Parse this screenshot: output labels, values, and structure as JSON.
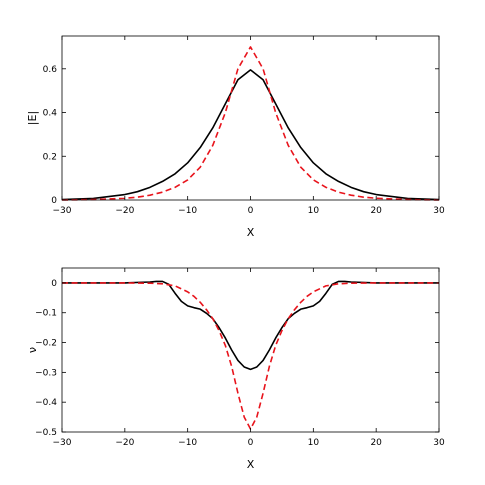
{
  "chart_data": [
    {
      "type": "line",
      "xlabel": "X",
      "ylabel": "|E|",
      "xlim": [
        -30,
        30
      ],
      "ylim": [
        0,
        0.75
      ],
      "xticks": [
        -30,
        -20,
        -10,
        0,
        10,
        20,
        30
      ],
      "yticks": [
        0,
        0.2,
        0.4,
        0.6
      ],
      "xtick_labels": [
        "−30",
        "−20",
        "−10",
        "0",
        "10",
        "20",
        "30"
      ],
      "ytick_labels": [
        "0",
        "0.2",
        "0.4",
        "0.6"
      ],
      "grid": false,
      "series": [
        {
          "style": "solid",
          "color": "#000000",
          "x": [
            -30,
            -25,
            -20,
            -18,
            -16,
            -14,
            -12,
            -10,
            -8,
            -6,
            -4,
            -2,
            0,
            2,
            4,
            6,
            8,
            10,
            12,
            14,
            16,
            18,
            20,
            25,
            30
          ],
          "y": [
            0.002,
            0.007,
            0.025,
            0.038,
            0.058,
            0.085,
            0.12,
            0.17,
            0.24,
            0.33,
            0.44,
            0.55,
            0.595,
            0.55,
            0.44,
            0.33,
            0.24,
            0.17,
            0.12,
            0.085,
            0.058,
            0.038,
            0.025,
            0.007,
            0.002
          ]
        },
        {
          "style": "dashed",
          "color": "#e8141c",
          "x": [
            -30,
            -25,
            -20,
            -18,
            -16,
            -14,
            -12,
            -10,
            -8,
            -6,
            -4,
            -2,
            0,
            2,
            4,
            6,
            8,
            10,
            12,
            14,
            16,
            18,
            20,
            25,
            30
          ],
          "y": [
            0.0,
            0.002,
            0.008,
            0.013,
            0.022,
            0.036,
            0.058,
            0.092,
            0.15,
            0.25,
            0.4,
            0.6,
            0.7,
            0.6,
            0.4,
            0.25,
            0.15,
            0.092,
            0.058,
            0.036,
            0.022,
            0.013,
            0.008,
            0.002,
            0.0
          ]
        }
      ]
    },
    {
      "type": "line",
      "xlabel": "X",
      "ylabel": "ν",
      "xlim": [
        -30,
        30
      ],
      "ylim": [
        -0.5,
        0.05
      ],
      "xticks": [
        -30,
        -20,
        -10,
        0,
        10,
        20,
        30
      ],
      "yticks": [
        0,
        -0.1,
        -0.2,
        -0.3,
        -0.4,
        -0.5
      ],
      "xtick_labels": [
        "−30",
        "−20",
        "−10",
        "0",
        "10",
        "20",
        "30"
      ],
      "ytick_labels": [
        "0",
        "−0.1",
        "−0.2",
        "−0.3",
        "−0.4",
        "−0.5"
      ],
      "grid": false,
      "series": [
        {
          "style": "solid",
          "color": "#000000",
          "x": [
            -30,
            -20,
            -16,
            -15,
            -14,
            -13,
            -12,
            -11,
            -10,
            -9,
            -8,
            -7,
            -6,
            -5,
            -4,
            -3,
            -2,
            -1,
            0,
            1,
            2,
            3,
            4,
            5,
            6,
            7,
            8,
            9,
            10,
            11,
            12,
            13,
            14,
            15,
            16,
            20,
            30
          ],
          "y": [
            0,
            0,
            0.003,
            0.005,
            0.005,
            -0.005,
            -0.035,
            -0.062,
            -0.077,
            -0.083,
            -0.088,
            -0.102,
            -0.12,
            -0.15,
            -0.185,
            -0.225,
            -0.26,
            -0.282,
            -0.29,
            -0.282,
            -0.26,
            -0.225,
            -0.185,
            -0.15,
            -0.12,
            -0.102,
            -0.088,
            -0.083,
            -0.077,
            -0.062,
            -0.035,
            -0.005,
            0.005,
            0.005,
            0.003,
            0,
            0
          ]
        },
        {
          "style": "dashed",
          "color": "#e8141c",
          "x": [
            -30,
            -20,
            -16,
            -14,
            -12,
            -10,
            -9,
            -8,
            -7,
            -6,
            -5,
            -4,
            -3,
            -2,
            -1,
            0,
            1,
            2,
            3,
            4,
            5,
            6,
            7,
            8,
            9,
            10,
            12,
            14,
            16,
            20,
            30
          ],
          "y": [
            0,
            0,
            -0.001,
            -0.003,
            -0.01,
            -0.03,
            -0.045,
            -0.065,
            -0.09,
            -0.12,
            -0.16,
            -0.21,
            -0.28,
            -0.37,
            -0.45,
            -0.49,
            -0.45,
            -0.37,
            -0.28,
            -0.21,
            -0.16,
            -0.12,
            -0.09,
            -0.065,
            -0.045,
            -0.03,
            -0.01,
            -0.003,
            -0.001,
            0,
            0
          ]
        }
      ]
    }
  ]
}
